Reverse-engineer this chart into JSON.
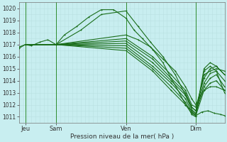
{
  "title": "",
  "xlabel": "Pression niveau de la mer( hPa )",
  "ylabel": "",
  "bg_color": "#c8eef0",
  "grid_color": "#b8e0e0",
  "line_color": "#1a6e1a",
  "marker_color": "#1a6e1a",
  "vline_color": "#2d8c2d",
  "ylim": [
    1010.5,
    1020.5
  ],
  "yticks": [
    1011,
    1012,
    1013,
    1014,
    1015,
    1016,
    1017,
    1018,
    1019,
    1020
  ],
  "xlim": [
    0,
    100
  ],
  "xtick_positions": [
    3,
    18,
    52,
    86
  ],
  "xtick_labels": [
    "Jeu",
    "Sam",
    "Ven",
    "Dim"
  ],
  "vline_positions": [
    3,
    18,
    52,
    86
  ],
  "series": [
    [
      0,
      1016.7,
      3,
      1017.0,
      6,
      1016.9,
      10,
      1017.2,
      14,
      1017.4,
      18,
      1017.0,
      22,
      1017.8,
      28,
      1018.5,
      34,
      1019.3,
      40,
      1019.9,
      46,
      1019.9,
      52,
      1019.2,
      56,
      1018.2,
      60,
      1017.5,
      65,
      1016.6,
      70,
      1015.5,
      74,
      1014.2,
      78,
      1013.0,
      81,
      1012.0,
      84,
      1011.3,
      86,
      1011.1,
      89,
      1011.4,
      92,
      1011.5,
      95,
      1011.3,
      98,
      1011.2,
      100,
      1011.1
    ],
    [
      3,
      1017.0,
      18,
      1017.0,
      30,
      1018.2,
      40,
      1019.5,
      52,
      1019.8,
      58,
      1018.5,
      64,
      1017.2,
      70,
      1016.0,
      76,
      1014.5,
      81,
      1012.8,
      84,
      1011.8,
      86,
      1011.5,
      90,
      1014.5,
      93,
      1014.8,
      96,
      1015.0,
      100,
      1014.8
    ],
    [
      3,
      1017.0,
      18,
      1017.0,
      52,
      1017.5,
      65,
      1016.0,
      74,
      1014.5,
      81,
      1013.2,
      84,
      1012.0,
      86,
      1011.8,
      90,
      1014.2,
      93,
      1015.0,
      96,
      1015.2,
      100,
      1014.5
    ],
    [
      3,
      1017.0,
      18,
      1017.0,
      52,
      1017.3,
      65,
      1015.8,
      74,
      1014.2,
      81,
      1013.0,
      84,
      1011.8,
      86,
      1011.5,
      90,
      1013.8,
      93,
      1014.6,
      96,
      1014.8,
      100,
      1014.0
    ],
    [
      3,
      1017.0,
      18,
      1017.0,
      52,
      1017.1,
      65,
      1015.5,
      74,
      1014.0,
      81,
      1012.8,
      84,
      1011.6,
      86,
      1011.3,
      90,
      1013.5,
      93,
      1014.2,
      96,
      1014.5,
      100,
      1013.5
    ],
    [
      3,
      1017.0,
      18,
      1017.0,
      52,
      1016.9,
      65,
      1015.2,
      74,
      1013.8,
      81,
      1012.5,
      84,
      1011.4,
      86,
      1011.1,
      90,
      1013.2,
      93,
      1013.8,
      96,
      1014.0,
      100,
      1013.2
    ],
    [
      3,
      1017.0,
      18,
      1017.0,
      52,
      1016.7,
      65,
      1015.0,
      74,
      1013.5,
      81,
      1012.2,
      84,
      1011.2,
      86,
      1011.0,
      90,
      1014.8,
      93,
      1015.2,
      96,
      1014.8,
      100,
      1013.0
    ],
    [
      3,
      1017.0,
      18,
      1017.0,
      52,
      1016.5,
      65,
      1014.8,
      74,
      1013.2,
      81,
      1012.0,
      84,
      1011.5,
      86,
      1011.2,
      90,
      1015.0,
      93,
      1015.5,
      96,
      1015.2,
      100,
      1014.5
    ],
    [
      0,
      1016.8,
      3,
      1017.0,
      18,
      1017.0,
      52,
      1017.8,
      58,
      1017.4,
      64,
      1016.8,
      70,
      1015.8,
      76,
      1014.8,
      81,
      1013.5,
      84,
      1012.5,
      86,
      1012.0,
      90,
      1013.2,
      93,
      1013.5,
      96,
      1013.5,
      100,
      1013.2
    ]
  ]
}
